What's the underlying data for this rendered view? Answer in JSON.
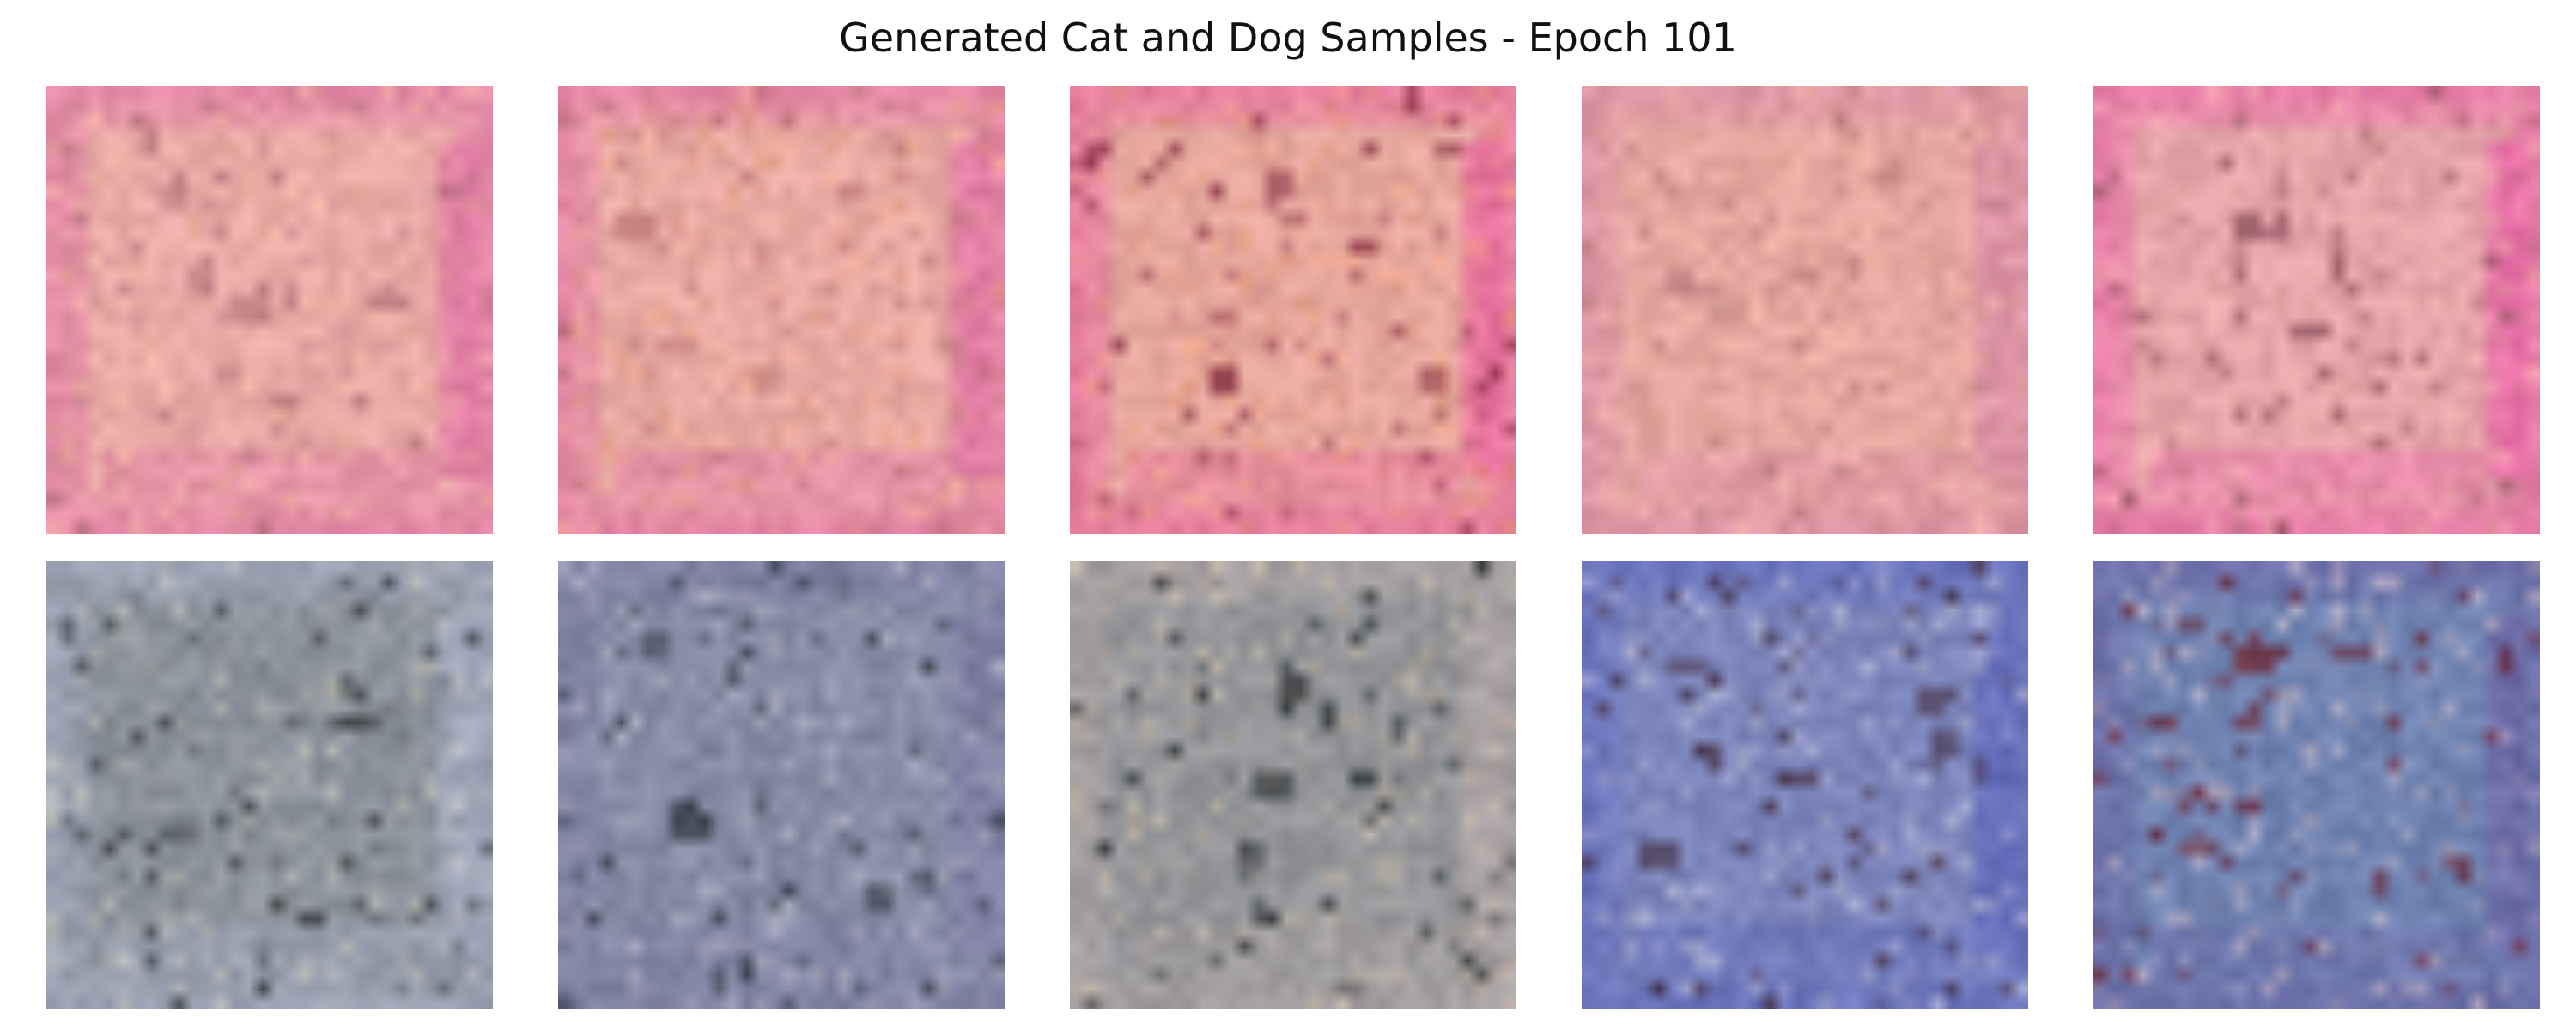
{
  "figure": {
    "title": "Generated Cat and Dog Samples - Epoch 101"
  },
  "samples": [
    {
      "row": 1,
      "col": 1,
      "palette": "pink",
      "base": "#e9a9a6",
      "frame": "#e16fa7",
      "accent": "#f4bd9c",
      "dark": "#a86a73"
    },
    {
      "row": 1,
      "col": 2,
      "palette": "pink",
      "base": "#e8aaa3",
      "frame": "#e06aa6",
      "accent": "#f0a67f",
      "dark": "#b56d70"
    },
    {
      "row": 1,
      "col": 3,
      "palette": "pink",
      "base": "#e6a79e",
      "frame": "#e85e9f",
      "accent": "#ef9e72",
      "dark": "#7a1f35"
    },
    {
      "row": 1,
      "col": 4,
      "palette": "pink",
      "base": "#e5a8a1",
      "frame": "#d888a6",
      "accent": "#f2b7a2",
      "dark": "#b57879"
    },
    {
      "row": 1,
      "col": 5,
      "palette": "pink",
      "base": "#e6a5aa",
      "frame": "#ea5ea8",
      "accent": "#f2b6aa",
      "dark": "#8b4f5a"
    },
    {
      "row": 2,
      "col": 1,
      "palette": "gray-blue",
      "base": "#8d939d",
      "frame": "#a7b0c6",
      "accent": "#d6d0bd",
      "dark": "#1f2427"
    },
    {
      "row": 2,
      "col": 2,
      "palette": "gray-blue",
      "base": "#858da6",
      "frame": "#7d7aa3",
      "accent": "#c7c4cc",
      "dark": "#273238"
    },
    {
      "row": 2,
      "col": 3,
      "palette": "gray",
      "base": "#94969a",
      "frame": "#b3a6a7",
      "accent": "#d8c3a6",
      "dark": "#15191c"
    },
    {
      "row": 2,
      "col": 4,
      "palette": "blue-red",
      "base": "#7c85bc",
      "frame": "#5c66bd",
      "accent": "#d9d7e3",
      "dark": "#3a1f28"
    },
    {
      "row": 2,
      "col": 5,
      "palette": "blue-red",
      "base": "#6f83b2",
      "frame": "#6d64a6",
      "accent": "#e6c9c9",
      "dark": "#6b1720"
    }
  ]
}
